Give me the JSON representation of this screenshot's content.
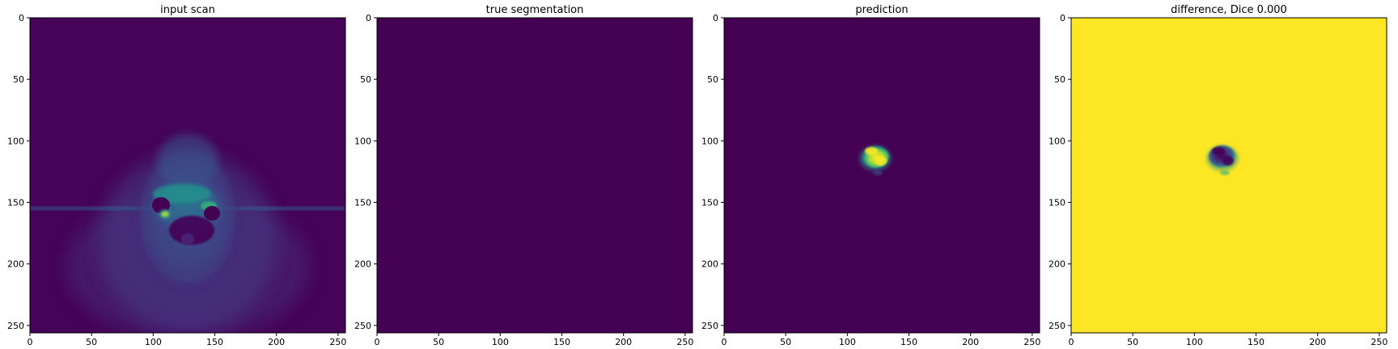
{
  "figure": {
    "panels": [
      {
        "id": "input",
        "title": "input scan",
        "image": "mri-scan-viridis"
      },
      {
        "id": "truth",
        "title": "true segmentation",
        "image": "blank-mask-viridis"
      },
      {
        "id": "prediction",
        "title": "prediction",
        "image": "predicted-blob-viridis"
      },
      {
        "id": "difference",
        "title": "difference, Dice 0.000",
        "image": "difference-map-viridis"
      }
    ],
    "x_ticks": [
      "0",
      "50",
      "100",
      "150",
      "200",
      "250"
    ],
    "y_ticks": [
      "0",
      "50",
      "100",
      "150",
      "200",
      "250"
    ],
    "x_tick_values": [
      0,
      50,
      100,
      150,
      200,
      250
    ],
    "y_tick_values": [
      0,
      50,
      100,
      150,
      200,
      250
    ],
    "image_extent": [
      0,
      256
    ],
    "colormap": {
      "name": "viridis",
      "dark": "#440154",
      "mid_dark": "#3b528b",
      "mid": "#21918c",
      "mid_light": "#5ec962",
      "bright": "#fde725"
    }
  }
}
